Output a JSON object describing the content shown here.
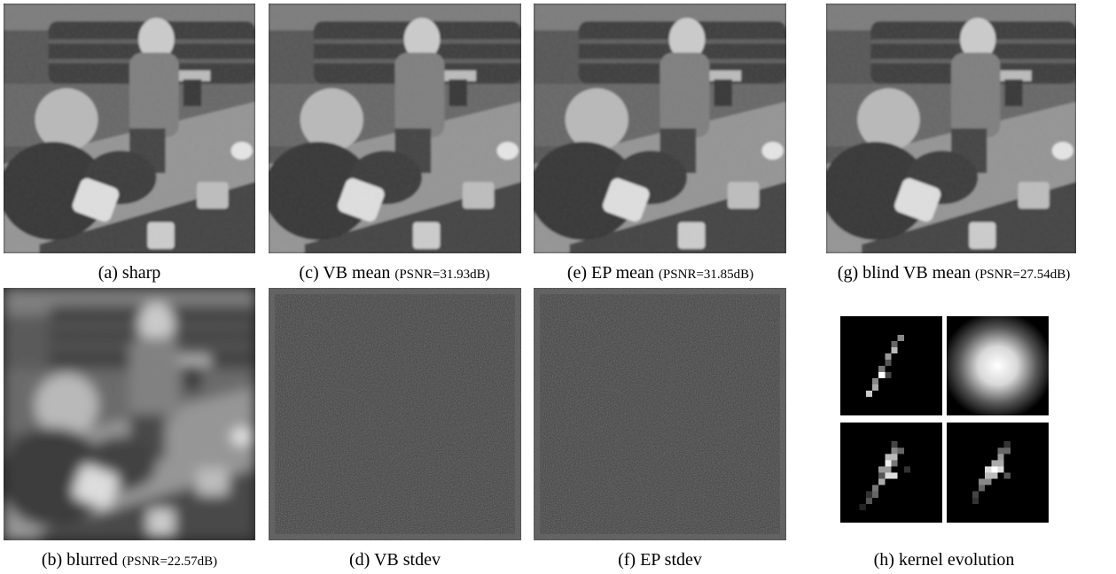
{
  "panels": {
    "a": {
      "label": "(a) sharp",
      "psnr": ""
    },
    "b": {
      "label": "(b) blurred",
      "psnr": "(PSNR=22.57dB)"
    },
    "c": {
      "label": "(c) VB mean",
      "psnr": "(PSNR=31.93dB)"
    },
    "d": {
      "label": "(d) VB stdev",
      "psnr": ""
    },
    "e": {
      "label": "(e) EP mean",
      "psnr": "(PSNR=31.85dB)"
    },
    "f": {
      "label": "(f) EP stdev",
      "psnr": ""
    },
    "g": {
      "label": "(g) blind VB mean",
      "psnr": "(PSNR=27.54dB)"
    },
    "h": {
      "label": "(h) kernel evolution",
      "psnr": ""
    }
  },
  "kernels": [
    "motion-kernel-initial",
    "gaussian-kernel",
    "estimated-kernel-mid",
    "estimated-kernel-final"
  ]
}
